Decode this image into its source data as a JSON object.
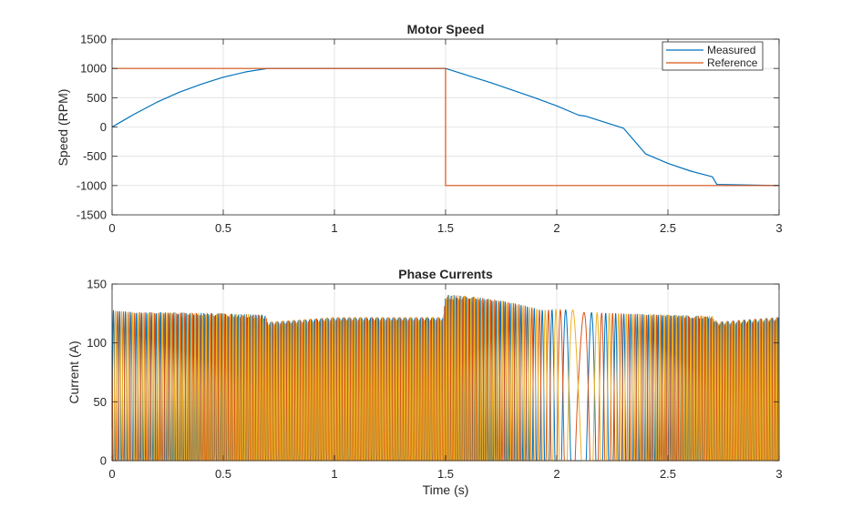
{
  "chart_data": [
    {
      "type": "line",
      "title": "Motor Speed",
      "xlabel": "",
      "ylabel": "Speed (RPM)",
      "xlim": [
        0,
        3
      ],
      "ylim": [
        -1500,
        1500
      ],
      "xticks": [
        0,
        0.5,
        1,
        1.5,
        2,
        2.5,
        3
      ],
      "xtick_labels": [
        "0",
        "0.5",
        "1",
        "1.5",
        "2",
        "2.5",
        "3"
      ],
      "yticks": [
        -1500,
        -1000,
        -500,
        0,
        500,
        1000,
        1500
      ],
      "ytick_labels": [
        "-1500",
        "-1000",
        "-500",
        "0",
        "500",
        "1000",
        "1500"
      ],
      "grid": true,
      "legend": {
        "placement": "top-right",
        "entries": [
          "Measured",
          "Reference"
        ]
      },
      "series": [
        {
          "name": "Measured",
          "color": "#0072BD",
          "x": [
            0,
            0.05,
            0.1,
            0.2,
            0.3,
            0.4,
            0.5,
            0.6,
            0.7,
            1.0,
            1.3,
            1.5,
            1.6,
            1.7,
            1.8,
            1.9,
            2.0,
            2.1,
            2.13,
            2.2,
            2.3,
            2.4,
            2.5,
            2.6,
            2.7,
            2.72,
            3.0
          ],
          "y": [
            0,
            110,
            220,
            420,
            590,
            730,
            850,
            940,
            1000,
            1000,
            1000,
            1000,
            880,
            760,
            630,
            500,
            360,
            200,
            185,
            100,
            -20,
            -460,
            -620,
            -750,
            -850,
            -980,
            -1000
          ]
        },
        {
          "name": "Reference",
          "color": "#D95319",
          "x": [
            0,
            1.5,
            1.5,
            3.0
          ],
          "y": [
            1000,
            1000,
            -1000,
            -1000
          ]
        }
      ]
    },
    {
      "type": "line",
      "title": "Phase Currents",
      "xlabel": "Time (s)",
      "ylabel": "Current (A)",
      "xlim": [
        0,
        3
      ],
      "ylim": [
        0,
        150
      ],
      "xticks": [
        0,
        0.5,
        1,
        1.5,
        2,
        2.5,
        3
      ],
      "xtick_labels": [
        "0",
        "0.5",
        "1",
        "1.5",
        "2",
        "2.5",
        "3"
      ],
      "yticks": [
        0,
        50,
        100,
        150
      ],
      "ytick_labels": [
        "0",
        "50",
        "100",
        "150"
      ],
      "grid": true,
      "series": [
        {
          "color": "#0072BD"
        },
        {
          "color": "#D95319"
        },
        {
          "color": "#EDB120"
        }
      ],
      "envelope": {
        "t": [
          0,
          0.1,
          0.3,
          0.5,
          0.69,
          0.7,
          1.0,
          1.49,
          1.5,
          1.6,
          1.75,
          1.85,
          1.93,
          2.08,
          2.1,
          2.3,
          2.5,
          2.7,
          2.72,
          3.0
        ],
        "peak": [
          128,
          126,
          126,
          125,
          124,
          118,
          122,
          122,
          141,
          140,
          136,
          132,
          128,
          128,
          126,
          125,
          124,
          123,
          118,
          122
        ]
      }
    }
  ]
}
